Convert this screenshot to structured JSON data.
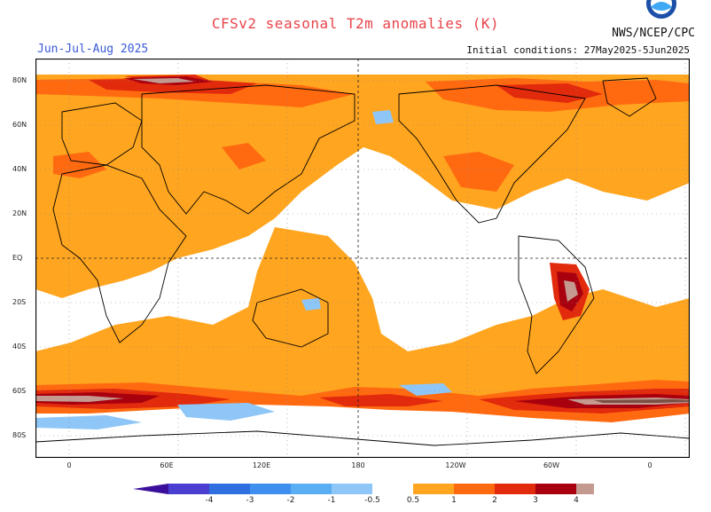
{
  "title": "CFSv2 seasonal T2m anomalies (K)",
  "season": "Jun-Jul-Aug 2025",
  "initial_conditions": "Initial conditions: 27May2025-5Jun2025",
  "agency": "NWS/NCEP/CPC",
  "latitude_labels": [
    "80N",
    "60N",
    "40N",
    "20N",
    "EQ",
    "20S",
    "40S",
    "60S",
    "80S"
  ],
  "longitude_labels": [
    "0",
    "60E",
    "120E",
    "180",
    "120W",
    "60W",
    "0"
  ],
  "colorbar": {
    "ticks": [
      "-4",
      "-3",
      "-2",
      "-1",
      "-0.5",
      "0.5",
      "1",
      "2",
      "3",
      "4"
    ],
    "colors": [
      "#3b0f9c",
      "#4a3fd0",
      "#2f6fe0",
      "#3f90ee",
      "#5aaef4",
      "#8ec6f7",
      "#ffffff",
      "#ffa51f",
      "#ff6a10",
      "#e22a0c",
      "#a8000e",
      "#c49a90",
      "#7a4f44"
    ]
  },
  "colors": {
    "warm_weak": "#ffa51f",
    "warm_mid": "#ff6a10",
    "warm_strong": "#e22a0c",
    "warm_very": "#a8000e",
    "warm_extreme": "#c49a90",
    "warm_max": "#7a4f44",
    "cool_weak": "#8ec6f7"
  }
}
